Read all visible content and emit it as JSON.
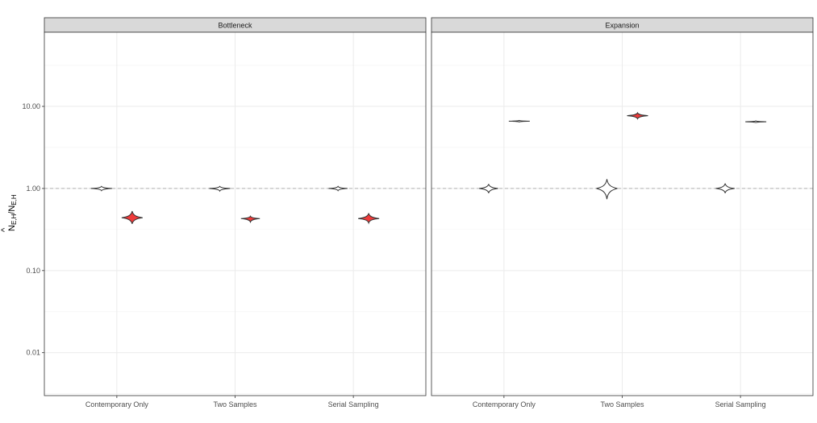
{
  "chart_data": {
    "type": "violin",
    "ylabel": {
      "main": "N",
      "hat": "^",
      "sub1": "E,H",
      "slash": "/N",
      "sub2": "E,H"
    },
    "y_scale": "log10",
    "ylim": [
      0.003,
      80
    ],
    "y_ticks": [
      0.01,
      0.1,
      1,
      10
    ],
    "y_tick_labels": [
      "0.01",
      "0.10",
      "1.00",
      "10.00"
    ],
    "reference_line": 1,
    "categories": [
      "Contemporary Only",
      "Two Samples",
      "Serial Sampling"
    ],
    "grid": true,
    "fill_colors": {
      "white": "#ffffff",
      "red": "#ef3b3b"
    },
    "panels": [
      {
        "strip": "Bottleneck",
        "groups": [
          {
            "category": "Contemporary Only",
            "offset": -1,
            "fill": "white",
            "center": 1.0,
            "low": 0.94,
            "high": 1.06,
            "width": 1.0
          },
          {
            "category": "Contemporary Only",
            "offset": 1,
            "fill": "red",
            "center": 0.44,
            "low": 0.37,
            "high": 0.53,
            "width": 1.0
          },
          {
            "category": "Two Samples",
            "offset": -1,
            "fill": "white",
            "center": 1.0,
            "low": 0.93,
            "high": 1.06,
            "width": 1.0
          },
          {
            "category": "Two Samples",
            "offset": 1,
            "fill": "red",
            "center": 0.43,
            "low": 0.39,
            "high": 0.46,
            "width": 0.9
          },
          {
            "category": "Serial Sampling",
            "offset": -1,
            "fill": "white",
            "center": 1.0,
            "low": 0.94,
            "high": 1.06,
            "width": 0.9
          },
          {
            "category": "Serial Sampling",
            "offset": 1,
            "fill": "red",
            "center": 0.43,
            "low": 0.38,
            "high": 0.5,
            "width": 1.0
          }
        ]
      },
      {
        "strip": "Expansion",
        "groups": [
          {
            "category": "Contemporary Only",
            "offset": -1,
            "fill": "white",
            "center": 1.0,
            "low": 0.88,
            "high": 1.13,
            "width": 0.9
          },
          {
            "category": "Contemporary Only",
            "offset": 1,
            "fill": "white",
            "center": 6.6,
            "low": 6.45,
            "high": 6.75,
            "width": 1.0
          },
          {
            "category": "Two Samples",
            "offset": -1,
            "fill": "white",
            "center": 1.0,
            "low": 0.74,
            "high": 1.3,
            "width": 1.0
          },
          {
            "category": "Two Samples",
            "offset": 1,
            "fill": "red",
            "center": 7.7,
            "low": 7.05,
            "high": 8.35,
            "width": 1.0
          },
          {
            "category": "Serial Sampling",
            "offset": -1,
            "fill": "white",
            "center": 1.0,
            "low": 0.88,
            "high": 1.15,
            "width": 0.9
          },
          {
            "category": "Serial Sampling",
            "offset": 1,
            "fill": "white",
            "center": 6.5,
            "low": 6.35,
            "high": 6.65,
            "width": 1.0
          }
        ]
      }
    ]
  }
}
